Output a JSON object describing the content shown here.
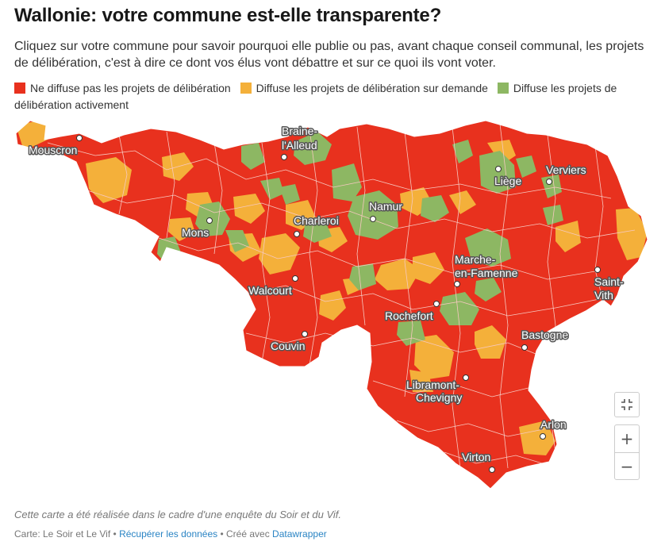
{
  "title": "Wallonie: votre commune est-elle transparente?",
  "description": "Cliquez sur votre commune pour savoir pourquoi elle publie ou pas, avant chaque conseil communal, les projets de délibération, c'est à dire ce dont vos élus vont débattre et sur ce quoi ils vont voter.",
  "legend": [
    {
      "label": "Ne diffuse pas les projets de délibération",
      "color": "#e8311e"
    },
    {
      "label": "Diffuse les projets de délibération sur demande",
      "color": "#f4b03a"
    },
    {
      "label": "Diffuse les projets de délibération activement",
      "color": "#8db763"
    }
  ],
  "colors": {
    "red": "#e8311e",
    "orange": "#f4b03a",
    "green": "#8db763",
    "border": "#f7c8c0"
  },
  "cities": [
    {
      "name": "Mouscron",
      "lines": [
        "Mouscron"
      ]
    },
    {
      "name": "Braine-l'Alleud",
      "lines": [
        "Braine-",
        "l'Alleud"
      ]
    },
    {
      "name": "Liège",
      "lines": [
        "Liège"
      ]
    },
    {
      "name": "Verviers",
      "lines": [
        "Verviers"
      ]
    },
    {
      "name": "Namur",
      "lines": [
        "Namur"
      ]
    },
    {
      "name": "Charleroi",
      "lines": [
        "Charleroi"
      ]
    },
    {
      "name": "Mons",
      "lines": [
        "Mons"
      ]
    },
    {
      "name": "Marche-en-Famenne",
      "lines": [
        "Marche-",
        "en-Famenne"
      ]
    },
    {
      "name": "Saint-Vith",
      "lines": [
        "Saint-",
        "Vith"
      ]
    },
    {
      "name": "Walcourt",
      "lines": [
        "Walcourt"
      ]
    },
    {
      "name": "Rochefort",
      "lines": [
        "Rochefort"
      ]
    },
    {
      "name": "Bastogne",
      "lines": [
        "Bastogne"
      ]
    },
    {
      "name": "Couvin",
      "lines": [
        "Couvin"
      ]
    },
    {
      "name": "Libramont-Chevigny",
      "lines": [
        "Libramont-",
        "Chevigny"
      ]
    },
    {
      "name": "Arlon",
      "lines": [
        "Arlon"
      ]
    },
    {
      "name": "Virton",
      "lines": [
        "Virton"
      ]
    }
  ],
  "zoom": {
    "fit_icon": "fullscreen-icon",
    "plus": "+",
    "minus": "−"
  },
  "note": "Cette carte a été réalisée dans le cadre d'une enquête du Soir et du Vif.",
  "footer": {
    "credit": "Carte: Le Soir et Le Vif",
    "sep1": " • ",
    "data_link": "Récupérer les données",
    "sep2": " • Créé avec ",
    "tool_link": "Datawrapper"
  }
}
